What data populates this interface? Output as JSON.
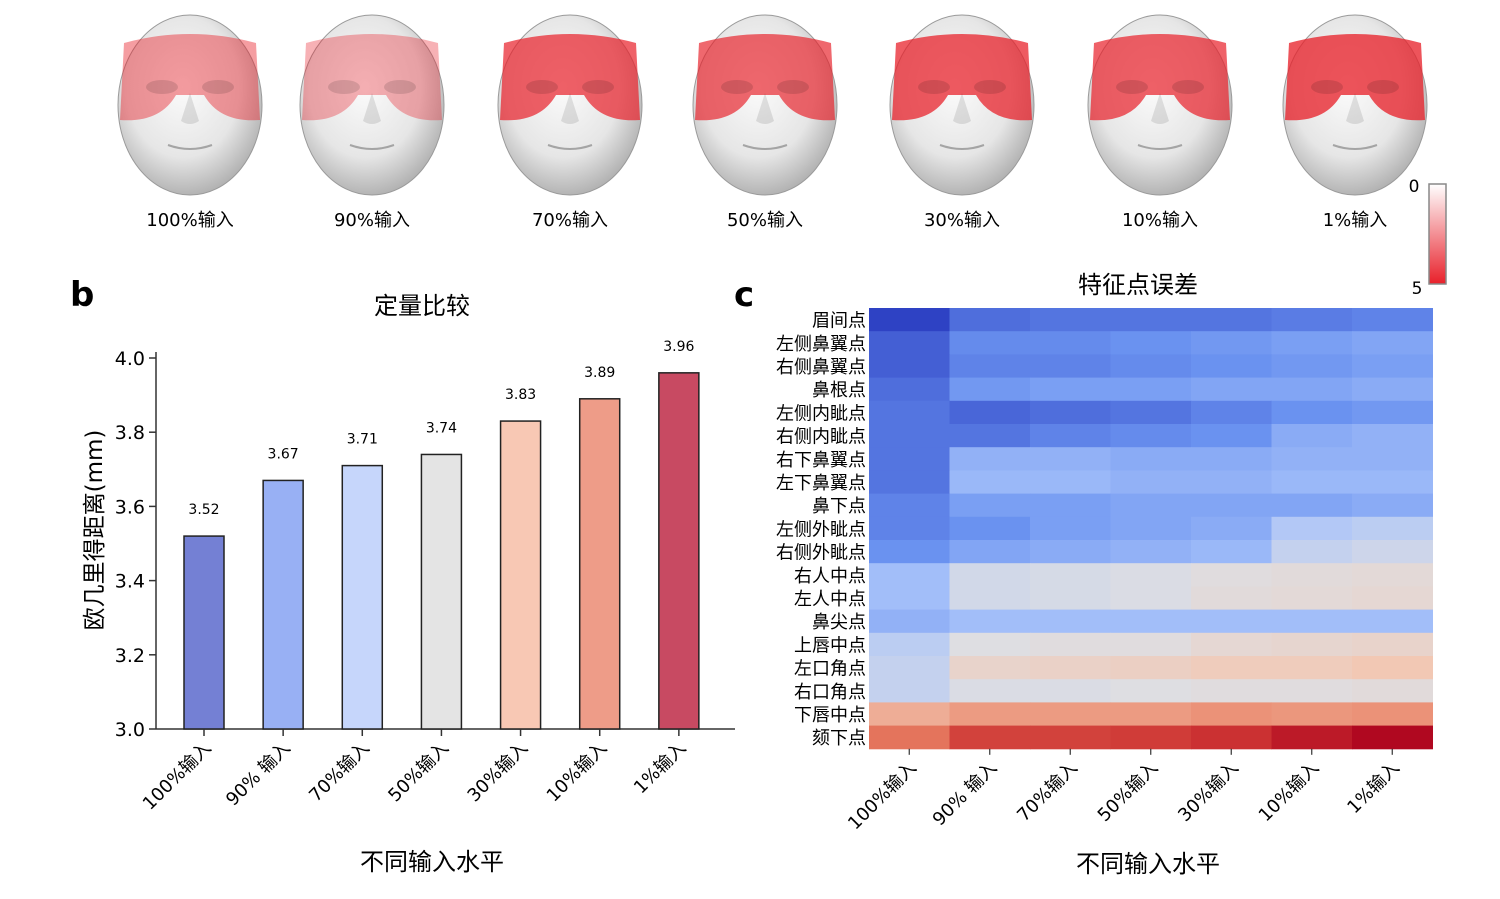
{
  "panel_a": {
    "face_labels": [
      "100%输入",
      "90%输入",
      "70%输入",
      "50%输入",
      "30%输入",
      "10%输入",
      "1%输入"
    ],
    "error_intensity": [
      0.4,
      0.25,
      0.85,
      0.8,
      0.9,
      0.85,
      0.95
    ],
    "colorbar": {
      "min_label": "0",
      "max_label": "5",
      "low_color": "#ffffff",
      "high_color": "#e8202a"
    }
  },
  "panel_b": {
    "letter": "b",
    "xlabel": "不同输入水平"
  },
  "panel_c": {
    "letter": "c",
    "xlabel": "不同输入水平"
  },
  "chart_data": [
    {
      "type": "bar",
      "title": "定量比较",
      "xlabel": "不同输入水平",
      "ylabel": "欧几里得距离(mm)",
      "ylim": [
        3.0,
        4.0
      ],
      "yticks": [
        "3.0",
        "3.2",
        "3.4",
        "3.6",
        "3.8",
        "4.0"
      ],
      "yticks_values": [
        3.0,
        3.2,
        3.4,
        3.6,
        3.8,
        4.0
      ],
      "categories": [
        "100%输入",
        "90% 输入",
        "70%输入",
        "50%输入",
        "30%输入",
        "10%输入",
        "1%输入"
      ],
      "values": [
        3.52,
        3.67,
        3.71,
        3.74,
        3.83,
        3.89,
        3.96
      ],
      "value_labels": [
        "3.52",
        "3.67",
        "3.71",
        "3.74",
        "3.83",
        "3.89",
        "3.96"
      ],
      "colors": [
        "#7480d4",
        "#98b0f4",
        "#c6d6fb",
        "#e4e4e4",
        "#f8c8b4",
        "#ee9c88",
        "#c84a62"
      ],
      "grid": false
    },
    {
      "type": "heatmap",
      "title": "特征点误差",
      "xlabel": "不同输入水平",
      "columns": [
        "100%输入",
        "90% 输入",
        "70%输入",
        "50%输入",
        "30%输入",
        "10%输入",
        "1%输入"
      ],
      "rows": [
        "眉间点",
        "左侧鼻翼点",
        "右侧鼻翼点",
        "鼻根点",
        "左侧内眦点",
        "右侧内眦点",
        "右下鼻翼点",
        "左下鼻翼点",
        "鼻下点",
        "左侧外眦点",
        "右侧外眦点",
        "右人中点",
        "左人中点",
        "鼻尖点",
        "上唇中点",
        "左口角点",
        "右口角点",
        "下唇中点",
        "颏下点"
      ],
      "values": [
        [
          0.0,
          0.12,
          0.14,
          0.14,
          0.14,
          0.16,
          0.18
        ],
        [
          0.08,
          0.2,
          0.2,
          0.22,
          0.24,
          0.26,
          0.28
        ],
        [
          0.08,
          0.18,
          0.18,
          0.2,
          0.22,
          0.24,
          0.26
        ],
        [
          0.12,
          0.24,
          0.26,
          0.26,
          0.28,
          0.28,
          0.3
        ],
        [
          0.14,
          0.1,
          0.12,
          0.14,
          0.18,
          0.22,
          0.24
        ],
        [
          0.14,
          0.14,
          0.18,
          0.2,
          0.22,
          0.3,
          0.32
        ],
        [
          0.14,
          0.32,
          0.32,
          0.3,
          0.3,
          0.32,
          0.32
        ],
        [
          0.14,
          0.34,
          0.34,
          0.32,
          0.32,
          0.34,
          0.34
        ],
        [
          0.18,
          0.26,
          0.26,
          0.28,
          0.28,
          0.28,
          0.3
        ],
        [
          0.18,
          0.22,
          0.26,
          0.28,
          0.3,
          0.4,
          0.42
        ],
        [
          0.22,
          0.28,
          0.3,
          0.32,
          0.34,
          0.44,
          0.46
        ],
        [
          0.36,
          0.47,
          0.48,
          0.49,
          0.51,
          0.52,
          0.53
        ],
        [
          0.36,
          0.47,
          0.48,
          0.49,
          0.52,
          0.53,
          0.54
        ],
        [
          0.32,
          0.36,
          0.36,
          0.36,
          0.36,
          0.36,
          0.36
        ],
        [
          0.42,
          0.5,
          0.51,
          0.51,
          0.54,
          0.55,
          0.56
        ],
        [
          0.44,
          0.56,
          0.57,
          0.58,
          0.6,
          0.6,
          0.62
        ],
        [
          0.44,
          0.49,
          0.49,
          0.5,
          0.51,
          0.51,
          0.52
        ],
        [
          0.68,
          0.72,
          0.72,
          0.72,
          0.74,
          0.73,
          0.74
        ],
        [
          0.8,
          0.88,
          0.88,
          0.89,
          0.91,
          0.96,
          1.0
        ]
      ]
    }
  ]
}
